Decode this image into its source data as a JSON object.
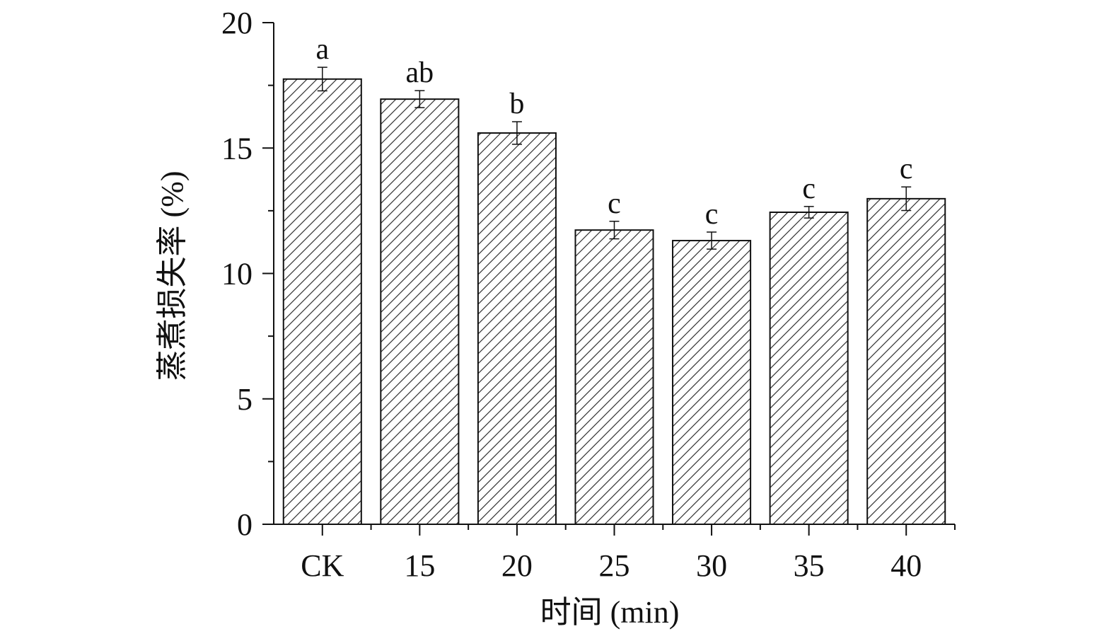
{
  "chart_data": {
    "type": "bar",
    "x_label": "时间 (min)",
    "y_label": "蒸煮损失率 (%)",
    "categories": [
      "CK",
      "15",
      "20",
      "25",
      "30",
      "35",
      "40"
    ],
    "values": [
      17.75,
      16.95,
      15.6,
      11.73,
      11.31,
      12.44,
      12.98
    ],
    "errors": [
      0.47,
      0.34,
      0.45,
      0.35,
      0.34,
      0.23,
      0.47
    ],
    "annotations": [
      "a",
      "ab",
      "b",
      "c",
      "c",
      "c",
      "c"
    ],
    "color": "#ffffff",
    "hatch": "/",
    "ylim": [
      0,
      20
    ],
    "yticks": [
      0,
      5,
      10,
      15,
      20
    ],
    "grid": false
  }
}
